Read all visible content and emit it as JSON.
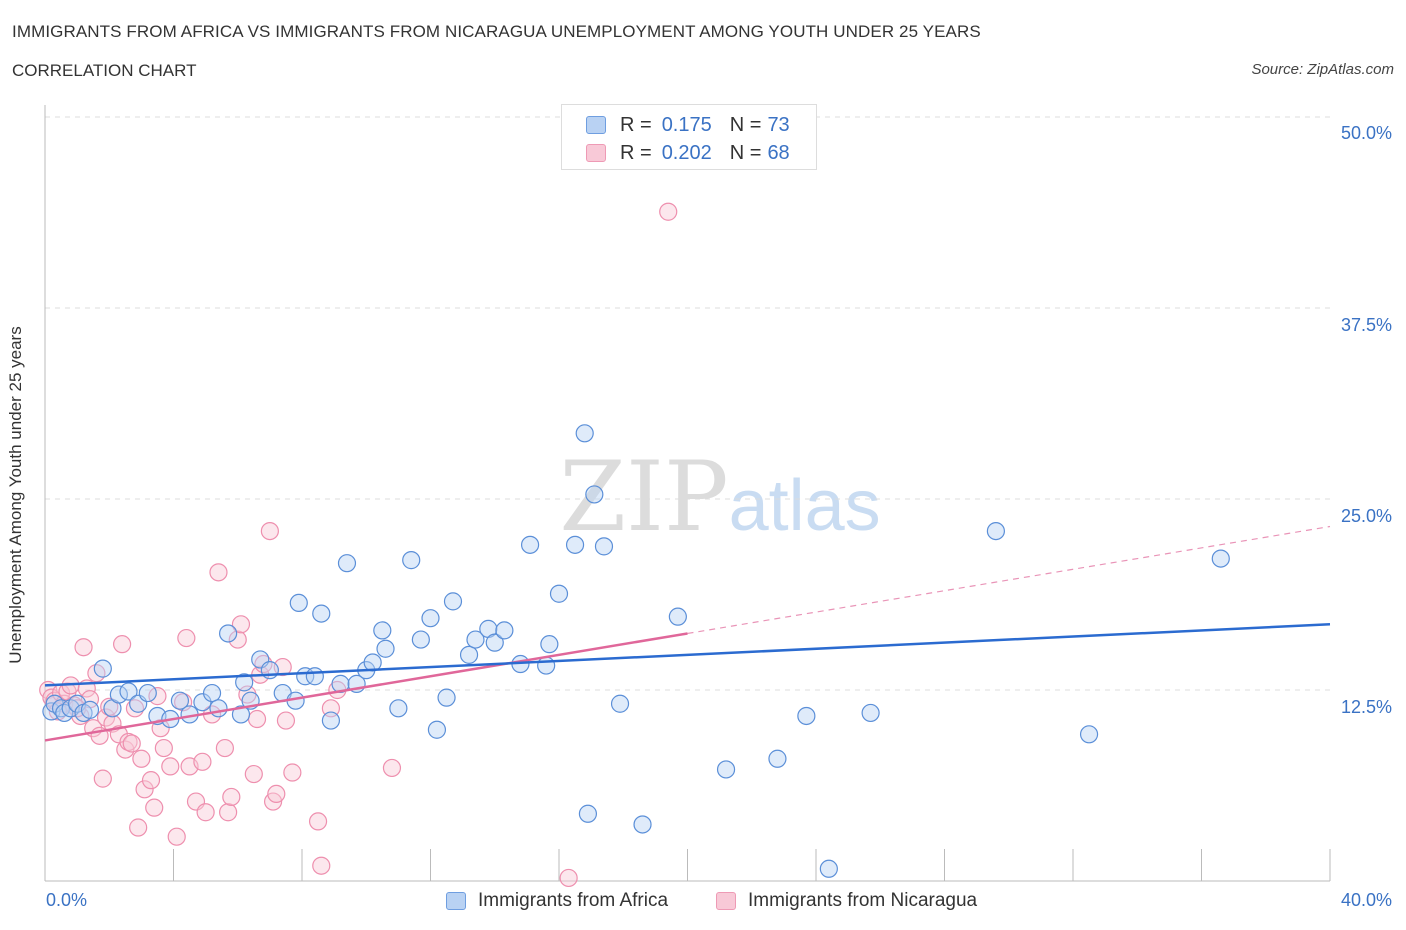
{
  "header": {
    "title": "IMMIGRANTS FROM AFRICA VS IMMIGRANTS FROM NICARAGUA UNEMPLOYMENT AMONG YOUTH UNDER 25 YEARS",
    "subtitle": "CORRELATION CHART",
    "source": "Source: ZipAtlas.com"
  },
  "watermark": "ZIPatlas",
  "legend": {
    "africa": {
      "r_label": "R =",
      "r_value": "0.175",
      "n_label": "N =",
      "n_value": "73"
    },
    "nicaragua": {
      "r_label": "R =",
      "r_value": "0.202",
      "n_label": "N =",
      "n_value": "68"
    }
  },
  "colors": {
    "africa": "#5b8fd8",
    "africa_line": "#2b6bd0",
    "nicaragua": "#ee8fae",
    "nicaragua_line": "#e0679a",
    "tick": "#3a72c4"
  },
  "chart_data": {
    "type": "scatter",
    "title": "IMMIGRANTS FROM AFRICA VS IMMIGRANTS FROM NICARAGUA UNEMPLOYMENT AMONG YOUTH UNDER 25 YEARS",
    "xlabel": "",
    "ylabel": "Unemployment Among Youth under 25 years",
    "xlim": [
      0,
      40
    ],
    "ylim": [
      0,
      50
    ],
    "x_tick_labels": [
      "0.0%",
      "40.0%"
    ],
    "y_tick_labels": [
      "12.5%",
      "25.0%",
      "37.5%",
      "50.0%"
    ],
    "y_ticks": [
      12.5,
      25.0,
      37.5,
      50.0
    ],
    "grid": true,
    "legend_position": "top-center",
    "series": [
      {
        "name": "Immigrants from Africa",
        "trend": {
          "x": [
            0,
            40
          ],
          "y": [
            12.8,
            16.8
          ]
        },
        "points": [
          [
            0.2,
            11.1
          ],
          [
            0.3,
            11.6
          ],
          [
            0.5,
            11.3
          ],
          [
            0.6,
            11.0
          ],
          [
            0.8,
            11.3
          ],
          [
            1.0,
            11.6
          ],
          [
            1.2,
            11.0
          ],
          [
            1.4,
            11.2
          ],
          [
            1.8,
            13.9
          ],
          [
            2.1,
            11.3
          ],
          [
            2.3,
            12.2
          ],
          [
            2.6,
            12.4
          ],
          [
            2.9,
            11.6
          ],
          [
            3.2,
            12.3
          ],
          [
            3.5,
            10.8
          ],
          [
            3.9,
            10.6
          ],
          [
            4.2,
            11.8
          ],
          [
            4.5,
            10.9
          ],
          [
            4.9,
            11.7
          ],
          [
            5.2,
            12.3
          ],
          [
            5.4,
            11.3
          ],
          [
            5.7,
            16.2
          ],
          [
            6.1,
            10.9
          ],
          [
            6.2,
            13.0
          ],
          [
            6.4,
            11.8
          ],
          [
            6.7,
            14.5
          ],
          [
            7.0,
            13.8
          ],
          [
            7.4,
            12.3
          ],
          [
            7.8,
            11.8
          ],
          [
            7.9,
            18.2
          ],
          [
            8.1,
            13.4
          ],
          [
            8.4,
            13.4
          ],
          [
            8.6,
            17.5
          ],
          [
            8.9,
            10.5
          ],
          [
            9.2,
            12.9
          ],
          [
            9.4,
            20.8
          ],
          [
            9.7,
            12.9
          ],
          [
            10.0,
            13.8
          ],
          [
            10.2,
            14.3
          ],
          [
            10.5,
            16.4
          ],
          [
            10.6,
            15.2
          ],
          [
            11.0,
            11.3
          ],
          [
            11.4,
            21.0
          ],
          [
            11.7,
            15.8
          ],
          [
            12.0,
            17.2
          ],
          [
            12.2,
            9.9
          ],
          [
            12.5,
            12.0
          ],
          [
            12.7,
            18.3
          ],
          [
            13.2,
            14.8
          ],
          [
            13.4,
            15.8
          ],
          [
            13.8,
            16.5
          ],
          [
            14.0,
            15.6
          ],
          [
            14.3,
            16.4
          ],
          [
            14.8,
            14.2
          ],
          [
            15.1,
            22.0
          ],
          [
            15.6,
            14.1
          ],
          [
            15.7,
            15.5
          ],
          [
            16.0,
            18.8
          ],
          [
            16.5,
            22.0
          ],
          [
            16.8,
            29.3
          ],
          [
            16.9,
            4.4
          ],
          [
            17.1,
            25.3
          ],
          [
            17.4,
            21.9
          ],
          [
            17.9,
            11.6
          ],
          [
            18.6,
            3.7
          ],
          [
            19.7,
            17.3
          ],
          [
            21.2,
            7.3
          ],
          [
            22.8,
            8.0
          ],
          [
            23.7,
            10.8
          ],
          [
            24.4,
            0.8
          ],
          [
            25.7,
            11.0
          ],
          [
            29.6,
            22.9
          ],
          [
            32.5,
            9.6
          ],
          [
            36.6,
            21.1
          ]
        ]
      },
      {
        "name": "Immigrants from Nicaragua",
        "trend": {
          "x": [
            0,
            20
          ],
          "y": [
            9.2,
            16.2
          ]
        },
        "trend_extension": {
          "x": [
            20,
            40
          ],
          "y": [
            16.2,
            23.2
          ]
        },
        "points": [
          [
            0.1,
            12.5
          ],
          [
            0.2,
            12.0
          ],
          [
            0.3,
            11.8
          ],
          [
            0.5,
            12.3
          ],
          [
            0.6,
            11.6
          ],
          [
            0.7,
            12.4
          ],
          [
            0.8,
            12.8
          ],
          [
            0.9,
            11.5
          ],
          [
            1.1,
            10.8
          ],
          [
            1.2,
            15.3
          ],
          [
            1.3,
            12.6
          ],
          [
            1.4,
            11.9
          ],
          [
            1.5,
            10.0
          ],
          [
            1.6,
            13.6
          ],
          [
            1.7,
            9.5
          ],
          [
            1.8,
            6.7
          ],
          [
            1.9,
            10.7
          ],
          [
            2.1,
            10.3
          ],
          [
            2.3,
            9.6
          ],
          [
            2.4,
            15.5
          ],
          [
            2.5,
            8.6
          ],
          [
            2.6,
            9.1
          ],
          [
            2.7,
            9.0
          ],
          [
            2.8,
            11.3
          ],
          [
            2.9,
            3.5
          ],
          [
            3.0,
            8.0
          ],
          [
            3.1,
            6.0
          ],
          [
            3.3,
            6.6
          ],
          [
            3.4,
            4.8
          ],
          [
            3.6,
            10.0
          ],
          [
            3.7,
            8.7
          ],
          [
            3.9,
            7.5
          ],
          [
            4.1,
            2.9
          ],
          [
            4.3,
            11.7
          ],
          [
            4.4,
            15.9
          ],
          [
            4.5,
            7.5
          ],
          [
            4.7,
            5.2
          ],
          [
            4.9,
            7.8
          ],
          [
            5.0,
            4.5
          ],
          [
            5.2,
            10.9
          ],
          [
            5.4,
            20.2
          ],
          [
            5.6,
            8.7
          ],
          [
            5.7,
            4.5
          ],
          [
            5.8,
            5.5
          ],
          [
            6.0,
            15.8
          ],
          [
            6.1,
            16.8
          ],
          [
            6.3,
            12.2
          ],
          [
            6.5,
            7.0
          ],
          [
            6.7,
            13.5
          ],
          [
            6.8,
            14.2
          ],
          [
            7.0,
            22.9
          ],
          [
            7.1,
            5.2
          ],
          [
            7.2,
            5.7
          ],
          [
            7.4,
            14.0
          ],
          [
            7.5,
            10.5
          ],
          [
            7.7,
            7.1
          ],
          [
            8.5,
            3.9
          ],
          [
            8.6,
            1.0
          ],
          [
            8.9,
            11.3
          ],
          [
            9.1,
            12.5
          ],
          [
            10.8,
            7.4
          ],
          [
            16.3,
            0.2
          ],
          [
            19.4,
            43.8
          ],
          [
            2.0,
            11.4
          ],
          [
            0.4,
            11.1
          ],
          [
            1.0,
            11.3
          ],
          [
            3.5,
            12.1
          ],
          [
            6.6,
            10.6
          ]
        ]
      }
    ]
  },
  "bottom_legend": {
    "africa": "Immigrants from Africa",
    "nicaragua": "Immigrants from Nicaragua"
  }
}
